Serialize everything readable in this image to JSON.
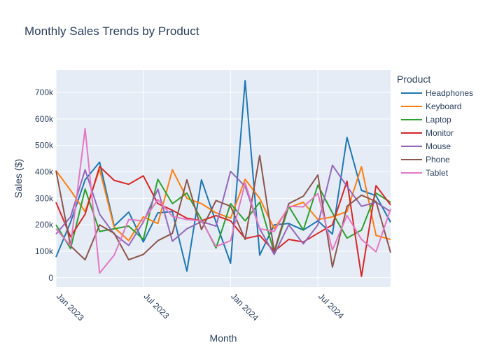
{
  "chart_data": {
    "type": "line",
    "title": "Monthly Sales Trends by Product",
    "xlabel": "Month",
    "ylabel": "Sales ($)",
    "legend_title": "Product",
    "legend_position": "right",
    "grid": true,
    "ylim": [
      -35000,
      785000
    ],
    "yticks": [
      0,
      100000,
      200000,
      300000,
      400000,
      500000,
      600000,
      700000
    ],
    "ytick_labels": [
      "0",
      "100k",
      "200k",
      "300k",
      "400k",
      "500k",
      "600k",
      "700k"
    ],
    "xticks": [
      "Jan 2023",
      "Jul 2023",
      "Jan 2024",
      "Jul 2024"
    ],
    "xtick_labels": [
      "Jan 2023",
      "Jul 2023",
      "Jan 2024",
      "Jul 2024"
    ],
    "x": [
      "2023-01",
      "2023-02",
      "2023-03",
      "2023-04",
      "2023-05",
      "2023-06",
      "2023-07",
      "2023-08",
      "2023-09",
      "2023-10",
      "2023-11",
      "2023-12",
      "2024-01",
      "2024-02",
      "2024-03",
      "2024-04",
      "2024-05",
      "2024-06",
      "2024-07",
      "2024-08",
      "2024-09",
      "2024-10",
      "2024-11",
      "2024-12"
    ],
    "series": [
      {
        "name": "Headphones",
        "color": "#1f77b4",
        "values": [
          78000,
          210000,
          370000,
          437000,
          195000,
          248000,
          135000,
          245000,
          250000,
          25000,
          370000,
          210000,
          55000,
          745000,
          85000,
          200000,
          205000,
          180000,
          215000,
          165000,
          530000,
          330000,
          310000,
          210000
        ]
      },
      {
        "name": "Keyboard",
        "color": "#ff7f0e",
        "values": [
          405000,
          330000,
          250000,
          410000,
          190000,
          140000,
          230000,
          205000,
          408000,
          300000,
          280000,
          245000,
          225000,
          372000,
          300000,
          185000,
          265000,
          285000,
          220000,
          230000,
          250000,
          420000,
          160000,
          145000
        ]
      },
      {
        "name": "Laptop",
        "color": "#2ca02c",
        "values": [
          200000,
          110000,
          335000,
          175000,
          185000,
          195000,
          145000,
          372000,
          280000,
          320000,
          220000,
          112000,
          280000,
          215000,
          285000,
          95000,
          270000,
          180000,
          350000,
          245000,
          150000,
          180000,
          320000,
          285000
        ]
      },
      {
        "name": "Monitor",
        "color": "#d62728",
        "values": [
          285000,
          155000,
          240000,
          420000,
          368000,
          353000,
          385000,
          280000,
          255000,
          225000,
          215000,
          235000,
          215000,
          148000,
          160000,
          100000,
          145000,
          135000,
          168000,
          200000,
          365000,
          5000,
          348000,
          275000
        ]
      },
      {
        "name": "Mouse",
        "color": "#9467bd",
        "values": [
          165000,
          230000,
          408000,
          240000,
          165000,
          122000,
          210000,
          335000,
          138000,
          185000,
          212000,
          195000,
          402000,
          345000,
          185000,
          88000,
          200000,
          128000,
          200000,
          425000,
          345000,
          270000,
          285000,
          250000
        ]
      },
      {
        "name": "Phone",
        "color": "#8c564b",
        "values": [
          405000,
          120000,
          68000,
          200000,
          168000,
          68000,
          88000,
          140000,
          168000,
          370000,
          182000,
          292000,
          270000,
          145000,
          462000,
          100000,
          280000,
          308000,
          388000,
          40000,
          270000,
          312000,
          288000,
          95000
        ]
      },
      {
        "name": "Tablet",
        "color": "#e377c2",
        "values": [
          185000,
          120000,
          563000,
          18000,
          85000,
          220000,
          215000,
          295000,
          232000,
          220000,
          215000,
          118000,
          140000,
          358000,
          185000,
          175000,
          270000,
          268000,
          318000,
          105000,
          235000,
          145000,
          98000,
          260000
        ]
      }
    ]
  }
}
